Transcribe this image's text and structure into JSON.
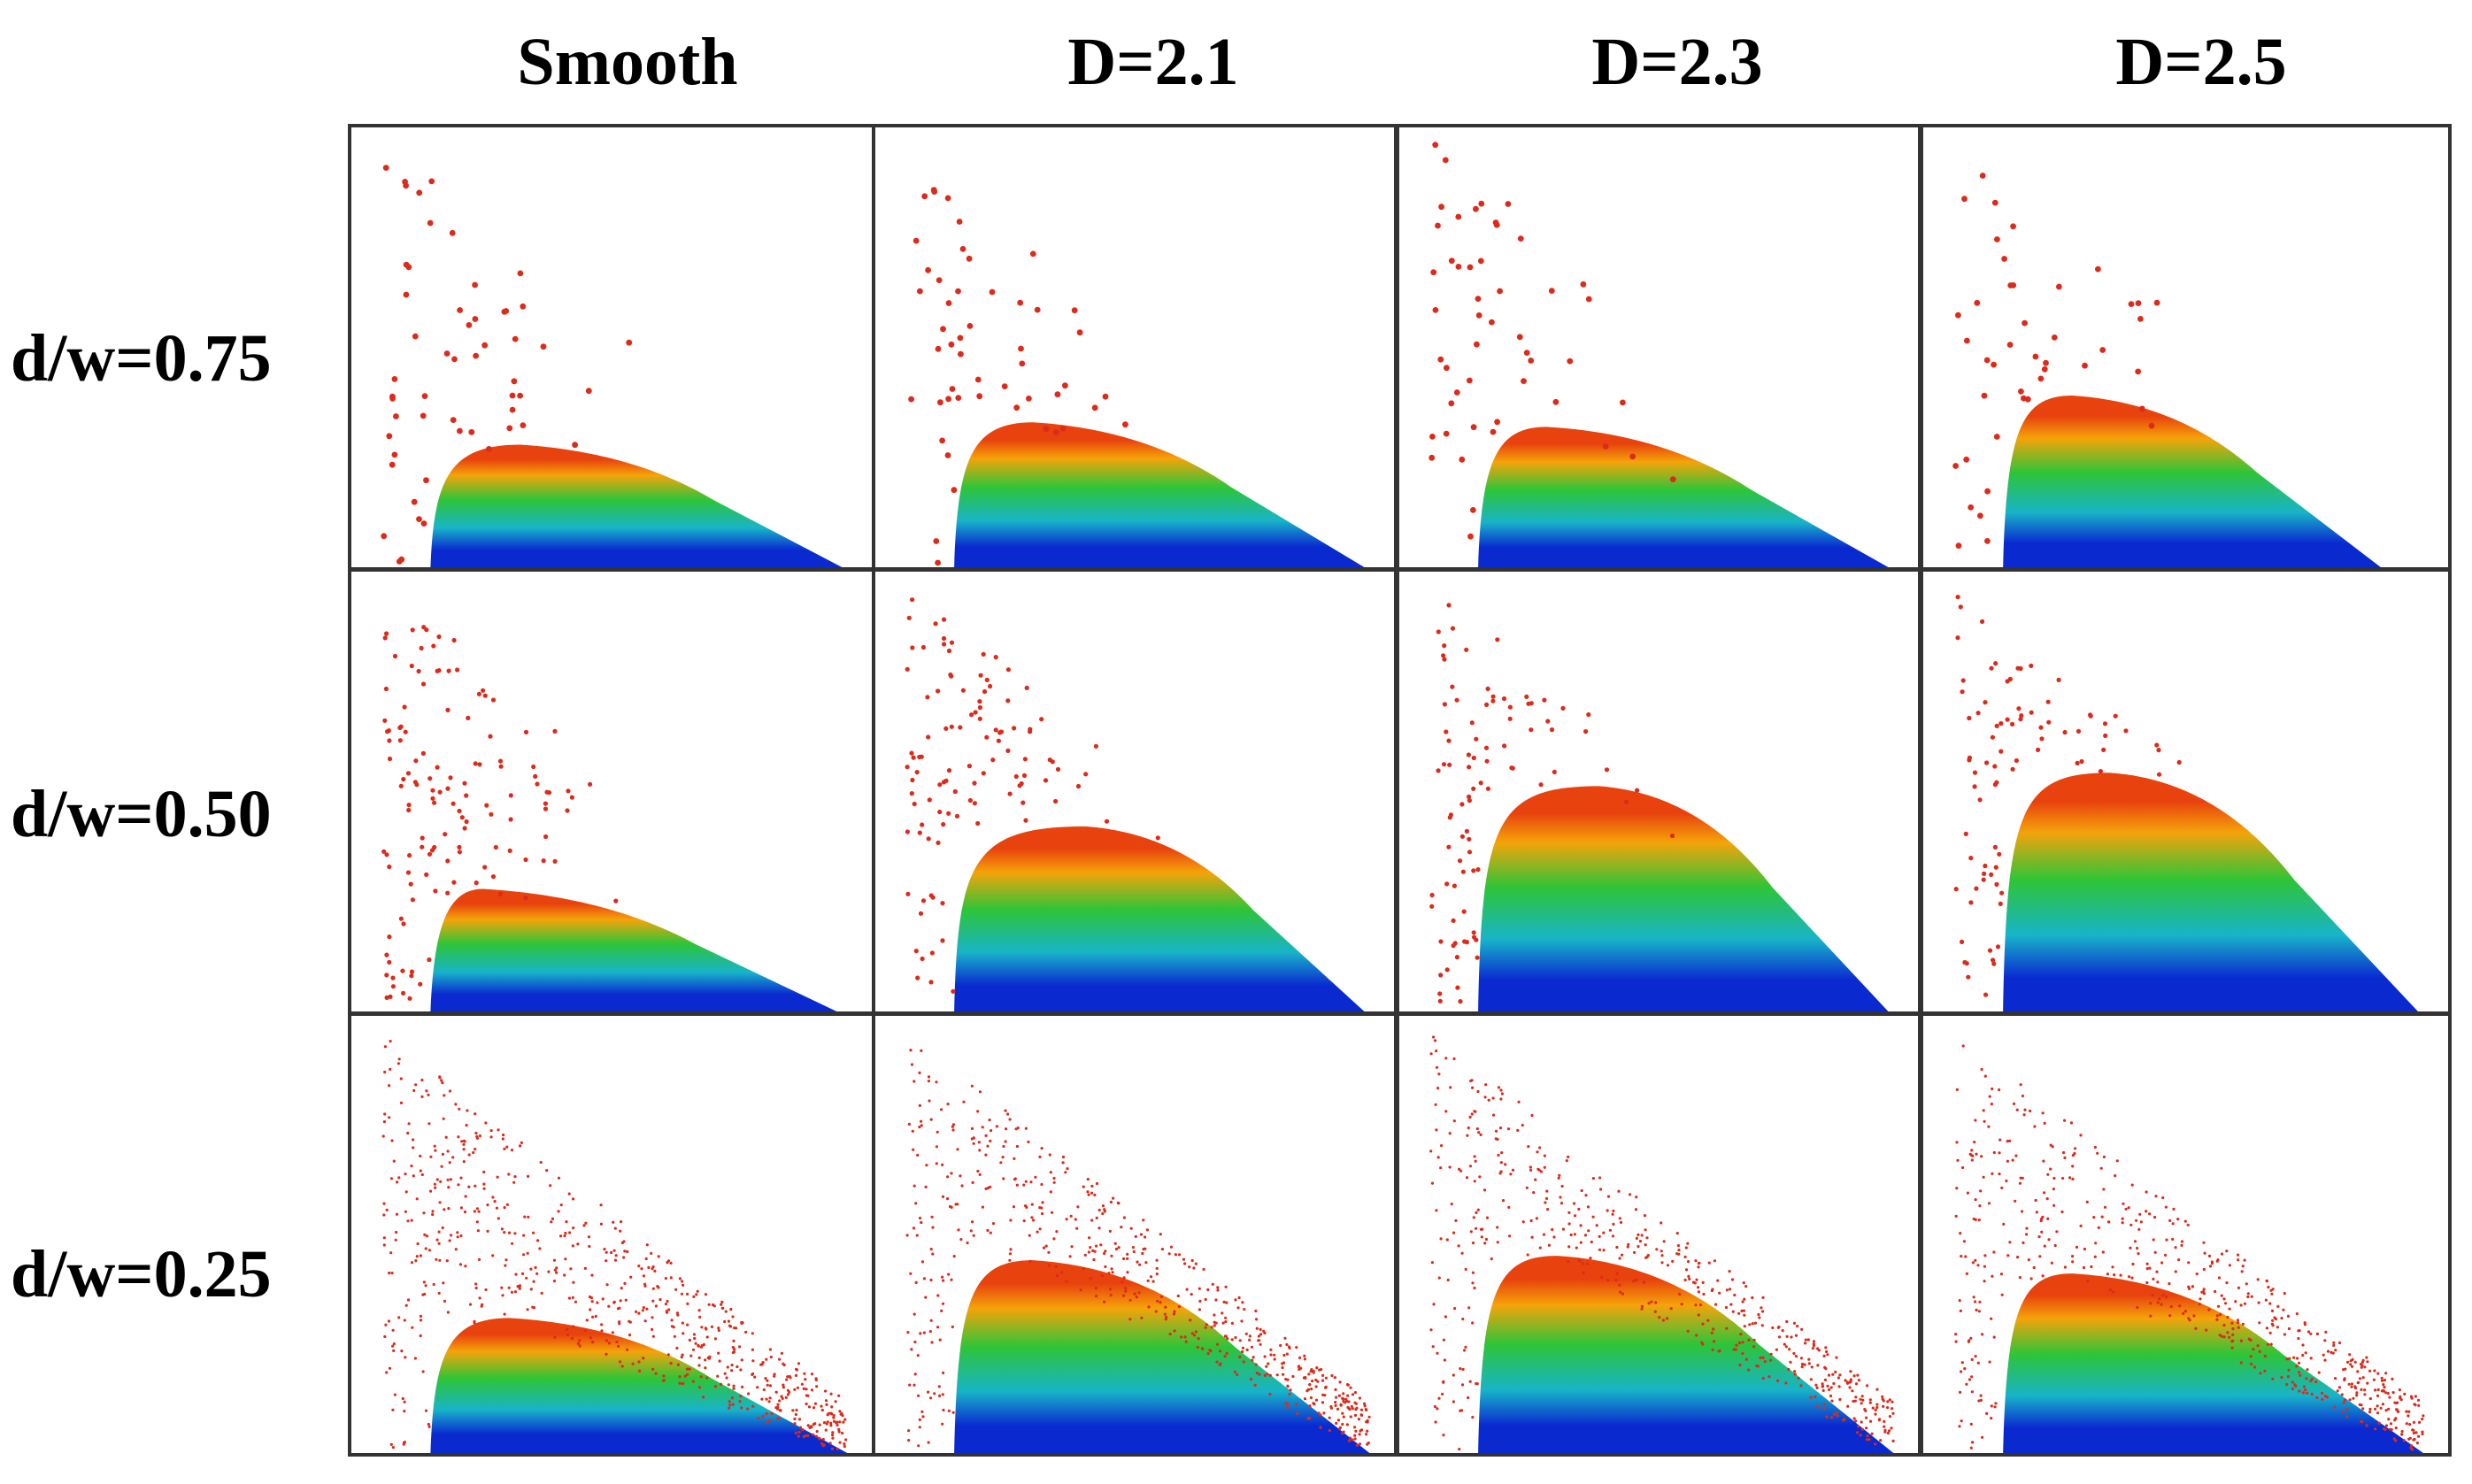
{
  "figure": {
    "columns": [
      "Smooth",
      "D=2.1",
      "D=2.3",
      "D=2.5"
    ],
    "rows": [
      "d/w=0.75",
      "d/w=0.50",
      "d/w=0.25"
    ]
  },
  "colors": {
    "scatter_particles": "#dd2a1a",
    "pile_top": "#e8420e",
    "pile_upper": "#f5a30a",
    "pile_mid": "#2ec438",
    "pile_lower": "#18b4c8",
    "pile_base": "#0a2ad0",
    "frame": "#333333"
  },
  "panels": [
    {
      "row": "d/w=0.75",
      "column": "Smooth",
      "pile_peak_height": 0.29,
      "pile_peak_x": 0.32,
      "pile_runout": 0.93,
      "scatter_top": 0.97,
      "scatter_density": 70
    },
    {
      "row": "d/w=0.75",
      "column": "D=2.1",
      "pile_peak_height": 0.34,
      "pile_peak_x": 0.3,
      "pile_runout": 0.93,
      "scatter_top": 0.97,
      "scatter_density": 70
    },
    {
      "row": "d/w=0.75",
      "column": "D=2.3",
      "pile_peak_height": 0.33,
      "pile_peak_x": 0.28,
      "pile_runout": 0.93,
      "scatter_top": 0.97,
      "scatter_density": 70
    },
    {
      "row": "d/w=0.75",
      "column": "D=2.5",
      "pile_peak_height": 0.4,
      "pile_peak_x": 0.28,
      "pile_runout": 0.86,
      "scatter_top": 0.97,
      "scatter_density": 60
    },
    {
      "row": "d/w=0.50",
      "column": "Smooth",
      "pile_peak_height": 0.29,
      "pile_peak_x": 0.25,
      "pile_runout": 0.92,
      "scatter_top": 0.98,
      "scatter_density": 160
    },
    {
      "row": "d/w=0.50",
      "column": "D=2.1",
      "pile_peak_height": 0.43,
      "pile_peak_x": 0.4,
      "pile_runout": 0.93,
      "scatter_top": 0.98,
      "scatter_density": 160
    },
    {
      "row": "d/w=0.50",
      "column": "D=2.3",
      "pile_peak_height": 0.52,
      "pile_peak_x": 0.38,
      "pile_runout": 0.93,
      "scatter_top": 0.98,
      "scatter_density": 160
    },
    {
      "row": "d/w=0.50",
      "column": "D=2.5",
      "pile_peak_height": 0.55,
      "pile_peak_x": 0.35,
      "pile_runout": 0.93,
      "scatter_top": 0.98,
      "scatter_density": 160
    },
    {
      "row": "d/w=0.25",
      "column": "Smooth",
      "pile_peak_height": 0.32,
      "pile_peak_x": 0.3,
      "pile_runout": 0.94,
      "scatter_top": 0.97,
      "scatter_density": 900
    },
    {
      "row": "d/w=0.25",
      "column": "D=2.1",
      "pile_peak_height": 0.45,
      "pile_peak_x": 0.3,
      "pile_runout": 0.94,
      "scatter_top": 0.97,
      "scatter_density": 900
    },
    {
      "row": "d/w=0.25",
      "column": "D=2.3",
      "pile_peak_height": 0.46,
      "pile_peak_x": 0.3,
      "pile_runout": 0.94,
      "scatter_top": 0.97,
      "scatter_density": 900
    },
    {
      "row": "d/w=0.25",
      "column": "D=2.5",
      "pile_peak_height": 0.42,
      "pile_peak_x": 0.28,
      "pile_runout": 0.94,
      "scatter_top": 0.97,
      "scatter_density": 900
    }
  ]
}
